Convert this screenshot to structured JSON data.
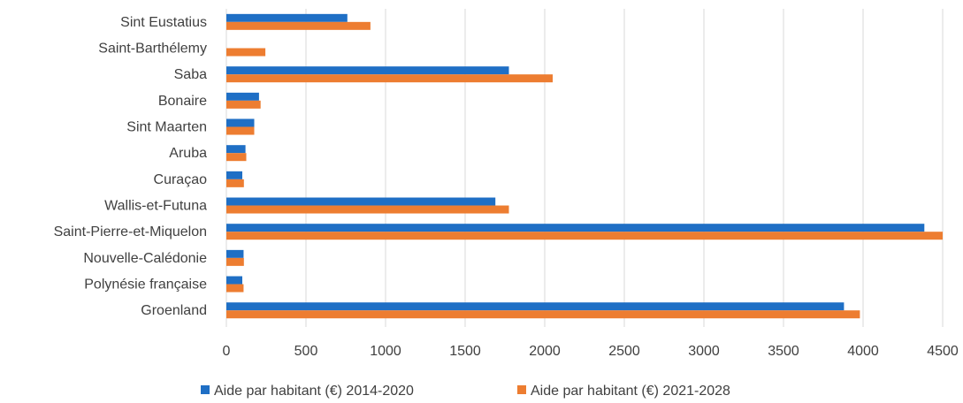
{
  "chart_data": {
    "type": "bar",
    "orientation": "horizontal",
    "categories": [
      "Sint Eustatius",
      "Saint-Barthélemy",
      "Saba",
      "Bonaire",
      "Sint Maarten",
      "Aruba",
      "Curaçao",
      "Wallis-et-Futuna",
      "Saint-Pierre-et-Miquelon",
      "Nouvelle-Calédonie",
      "Polynésie française",
      "Groenland"
    ],
    "series": [
      {
        "name": "Aide par habitant (€) 2014-2020",
        "color": "#1f6fc5",
        "values": [
          760,
          0,
          1775,
          205,
          175,
          120,
          100,
          1690,
          4385,
          108,
          100,
          3880
        ]
      },
      {
        "name": "Aide par habitant (€) 2021-2028",
        "color": "#ed7d31",
        "values": [
          905,
          245,
          2050,
          215,
          175,
          125,
          110,
          1775,
          4500,
          110,
          108,
          3980
        ]
      }
    ],
    "xticks": [
      "0",
      "500",
      "1000",
      "1500",
      "2000",
      "2500",
      "3000",
      "3500",
      "4000",
      "4500"
    ],
    "xlim": [
      0,
      4500
    ],
    "grid": true,
    "legend_position": "bottom"
  }
}
